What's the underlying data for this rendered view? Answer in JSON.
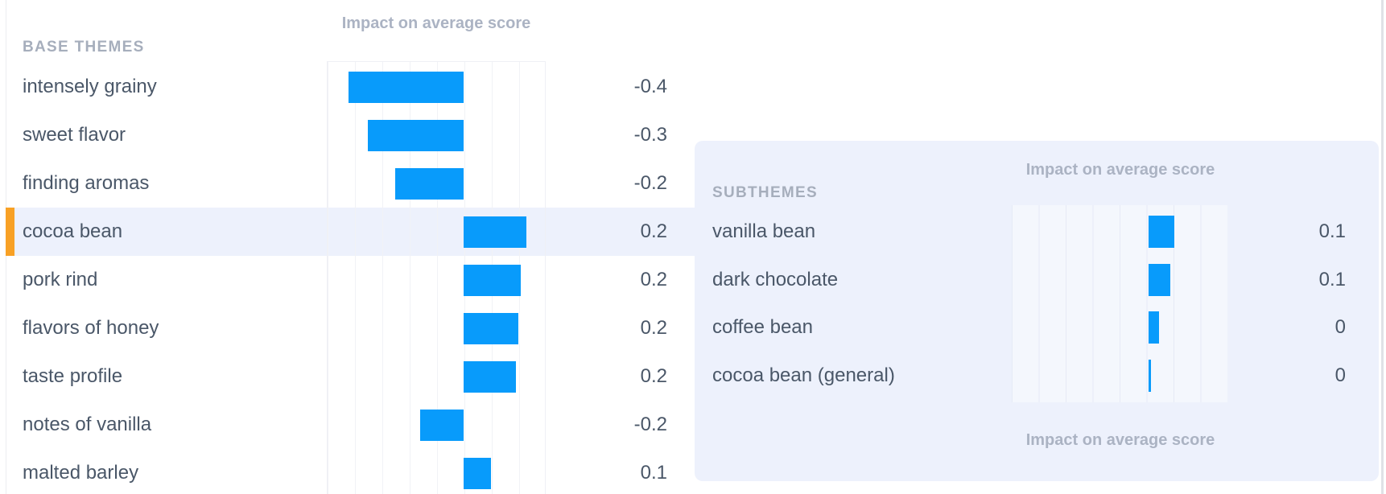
{
  "colors": {
    "bar_blue": "#089BFB",
    "selection_orange": "#F8A125",
    "panel_bg": "#EDF1FC",
    "text_dark": "#4A5768",
    "text_muted": "#A6AEBC"
  },
  "base_panel": {
    "header": "BASE THEMES",
    "chart_title": "Impact on average score",
    "rows": [
      {
        "label": "intensely grainy",
        "value": "-0.4",
        "bar": -0.42,
        "selected": false
      },
      {
        "label": "sweet flavor",
        "value": "-0.3",
        "bar": -0.35,
        "selected": false
      },
      {
        "label": "finding aromas",
        "value": "-0.2",
        "bar": -0.25,
        "selected": false
      },
      {
        "label": "cocoa bean",
        "value": "0.2",
        "bar": 0.23,
        "selected": true
      },
      {
        "label": "pork rind",
        "value": "0.2",
        "bar": 0.21,
        "selected": false
      },
      {
        "label": "flavors of honey",
        "value": "0.2",
        "bar": 0.2,
        "selected": false
      },
      {
        "label": "taste profile",
        "value": "0.2",
        "bar": 0.19,
        "selected": false
      },
      {
        "label": "notes of vanilla",
        "value": "-0.2",
        "bar": -0.16,
        "selected": false
      },
      {
        "label": "malted barley",
        "value": "0.1",
        "bar": 0.1,
        "selected": false
      }
    ]
  },
  "sub_panel": {
    "header": "SUBTHEMES",
    "chart_title_top": "Impact on average score",
    "chart_title_bottom": "Impact on average score",
    "rows": [
      {
        "label": "vanilla bean",
        "value": "0.1",
        "bar": 0.095
      },
      {
        "label": "dark chocolate",
        "value": "0.1",
        "bar": 0.08
      },
      {
        "label": "coffee bean",
        "value": "0",
        "bar": 0.04
      },
      {
        "label": "cocoa bean (general)",
        "value": "0",
        "bar": 0.01
      }
    ]
  },
  "chart_data": [
    {
      "type": "bar",
      "orientation": "horizontal",
      "section": "BASE THEMES",
      "title": "Impact on average score",
      "categories": [
        "intensely grainy",
        "sweet flavor",
        "finding aromas",
        "cocoa bean",
        "pork rind",
        "flavors of honey",
        "taste profile",
        "notes of vanilla",
        "malted barley"
      ],
      "values": [
        -0.4,
        -0.3,
        -0.2,
        0.2,
        0.2,
        0.2,
        0.2,
        -0.2,
        0.1
      ],
      "xlim": [
        -0.5,
        0.3
      ],
      "gridline_step": 0.1,
      "grid": true,
      "selected_category": "cocoa bean",
      "value_labels_position": "right"
    },
    {
      "type": "bar",
      "orientation": "horizontal",
      "section": "SUBTHEMES",
      "title": "Impact on average score",
      "categories": [
        "vanilla bean",
        "dark chocolate",
        "coffee bean",
        "cocoa bean (general)"
      ],
      "values": [
        0.1,
        0.1,
        0,
        0
      ],
      "xlim": [
        -0.5,
        0.3
      ],
      "gridline_step": 0.1,
      "grid": true,
      "value_labels_position": "right"
    }
  ]
}
